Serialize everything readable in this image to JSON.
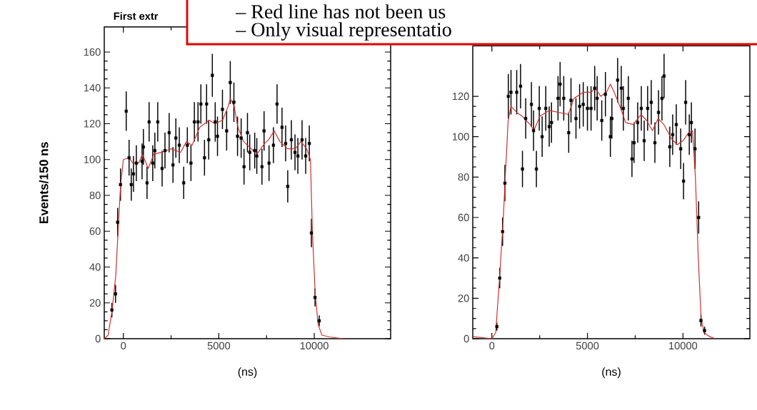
{
  "chart_data": [
    {
      "type": "scatter",
      "title": "First extr",
      "xlabel": "(ns)",
      "ylabel": "Events/150 ns",
      "annotations": [
        "– Red line has not been us",
        "– Only visual representatio"
      ],
      "xlim": [
        -1000,
        14000
      ],
      "ylim": [
        0,
        174
      ],
      "xticks": [
        0,
        5000,
        10000
      ],
      "yticks": [
        0,
        20,
        40,
        60,
        80,
        100,
        120,
        140,
        160
      ],
      "series": [
        {
          "marker": "square",
          "color": "#000000",
          "x": [
            -600,
            -410,
            -300,
            -150,
            150,
            300,
            415,
            530,
            680,
            980,
            1050,
            1240,
            1350,
            1540,
            1650,
            1800,
            2030,
            2180,
            2400,
            2600,
            2750,
            2930,
            3160,
            3350,
            3540,
            3720,
            3910,
            4060,
            4250,
            4360,
            4470,
            4660,
            4810,
            4930,
            5190,
            5410,
            5600,
            5790,
            5980,
            6170,
            6320,
            6500,
            6620,
            6880,
            6990,
            7260,
            7370,
            7630,
            7860,
            8050,
            8310,
            8500,
            8610,
            8800,
            8990,
            9140,
            9360,
            9550,
            9740,
            9850,
            10040,
            10260
          ],
          "values": [
            16,
            25,
            65,
            86,
            127,
            101,
            86,
            92,
            98,
            99,
            107,
            87,
            121,
            98,
            105,
            121,
            95,
            105,
            115,
            97,
            112,
            108,
            87,
            108,
            98,
            121,
            121,
            131,
            101,
            131,
            111,
            147,
            121,
            113,
            128,
            116,
            143,
            132,
            113,
            112,
            96,
            115,
            104,
            105,
            102,
            96,
            116,
            98,
            108,
            131,
            118,
            109,
            85,
            111,
            104,
            102,
            111,
            102,
            109,
            59,
            23,
            10
          ],
          "errors": [
            4,
            5,
            8,
            9,
            11,
            10,
            9,
            10,
            10,
            10,
            10,
            9,
            11,
            10,
            10,
            11,
            10,
            10,
            11,
            10,
            11,
            10,
            9,
            10,
            10,
            11,
            11,
            11,
            10,
            11,
            11,
            12,
            11,
            11,
            11,
            11,
            12,
            11,
            11,
            11,
            10,
            11,
            10,
            10,
            10,
            10,
            11,
            10,
            10,
            11,
            11,
            10,
            9,
            11,
            10,
            10,
            11,
            10,
            10,
            8,
            5,
            3
          ]
        },
        {
          "type": "line",
          "marker": "none",
          "line_style": "solid",
          "color": "#d03030",
          "x": [
            -1000,
            -800,
            -600,
            -400,
            -250,
            -150,
            0,
            300,
            500,
            800,
            1000,
            1300,
            1600,
            2000,
            2500,
            3000,
            3300,
            3600,
            3800,
            4000,
            4500,
            4800,
            5200,
            5500,
            5600,
            5800,
            6000,
            6300,
            6600,
            7000,
            7400,
            7600,
            7900,
            8200,
            8600,
            9000,
            9300,
            9600,
            9800,
            9900,
            10050,
            10200,
            10400,
            10800,
            11500
          ],
          "values": [
            0,
            2,
            15,
            35,
            65,
            85,
            100,
            101,
            98,
            98,
            103,
            95,
            103,
            104,
            106,
            104,
            110,
            108,
            113,
            118,
            122,
            120,
            122,
            130,
            134,
            130,
            118,
            110,
            107,
            103,
            109,
            111,
            116,
            110,
            106,
            106,
            110,
            106,
            100,
            60,
            25,
            8,
            2,
            1,
            0
          ]
        }
      ]
    },
    {
      "type": "scatter",
      "xlabel": "(ns)",
      "xlim": [
        -1000,
        13500
      ],
      "ylim": [
        0,
        145
      ],
      "xticks": [
        0,
        5000,
        10000
      ],
      "yticks": [
        0,
        20,
        40,
        60,
        80,
        100,
        120
      ],
      "series": [
        {
          "marker": "square",
          "color": "#000000",
          "x": [
            260,
            410,
            560,
            680,
            860,
            1000,
            1300,
            1500,
            1600,
            1770,
            2070,
            2180,
            2330,
            2480,
            2630,
            2820,
            3000,
            3120,
            3460,
            3570,
            3760,
            4020,
            4140,
            4400,
            4590,
            4780,
            5000,
            5190,
            5380,
            5510,
            5750,
            5940,
            6200,
            6280,
            6580,
            6770,
            6880,
            7140,
            7330,
            7440,
            7630,
            7820,
            7970,
            8150,
            8340,
            8530,
            8720,
            8900,
            9010,
            9310,
            9460,
            9650,
            9880,
            10030,
            10140,
            10330,
            10440,
            10630,
            10820,
            10940,
            11130
          ],
          "values": [
            6,
            30,
            53,
            77,
            120,
            122,
            122,
            125,
            84,
            109,
            116,
            103,
            84,
            114,
            100,
            114,
            105,
            107,
            119,
            126,
            119,
            102,
            118,
            109,
            115,
            116,
            114,
            114,
            124,
            119,
            108,
            121,
            100,
            109,
            128,
            124,
            114,
            119,
            89,
            97,
            107,
            114,
            98,
            114,
            117,
            97,
            112,
            119,
            130,
            95,
            101,
            106,
            94,
            78,
            117,
            101,
            107,
            94,
            60,
            9,
            4
          ],
          "errors": [
            2,
            5,
            7,
            9,
            11,
            11,
            11,
            11,
            9,
            10,
            11,
            10,
            9,
            11,
            10,
            11,
            10,
            10,
            11,
            11,
            11,
            10,
            11,
            10,
            11,
            11,
            11,
            11,
            11,
            11,
            10,
            11,
            10,
            10,
            11,
            11,
            11,
            11,
            9,
            10,
            10,
            11,
            10,
            11,
            11,
            10,
            11,
            11,
            11,
            10,
            10,
            10,
            10,
            9,
            11,
            10,
            10,
            10,
            8,
            3,
            2
          ]
        },
        {
          "type": "line",
          "marker": "none",
          "line_style": "solid",
          "color": "#d03030",
          "x": [
            -1000,
            0,
            200,
            400,
            600,
            700,
            850,
            1000,
            1300,
            1600,
            2000,
            2200,
            2500,
            3000,
            3500,
            4000,
            4300,
            4800,
            5200,
            5400,
            5700,
            6000,
            6200,
            6400,
            6700,
            7000,
            7400,
            7800,
            8100,
            8400,
            8700,
            9000,
            9400,
            9700,
            10000,
            10300,
            10500,
            10650,
            10800,
            10950,
            11100,
            11400,
            11700
          ],
          "values": [
            1,
            0,
            3,
            30,
            60,
            80,
            108,
            115,
            112,
            110,
            106,
            103,
            110,
            113,
            112,
            111,
            119,
            122,
            122,
            124,
            120,
            122,
            126,
            122,
            115,
            107,
            106,
            111,
            108,
            103,
            109,
            106,
            99,
            96,
            98,
            102,
            103,
            80,
            40,
            10,
            3,
            1,
            0
          ]
        }
      ]
    }
  ]
}
